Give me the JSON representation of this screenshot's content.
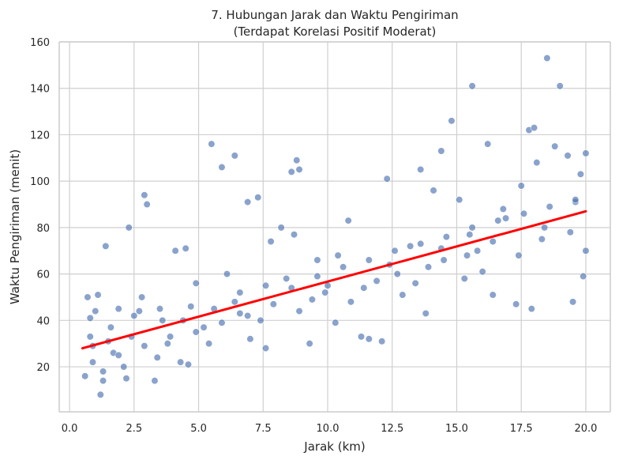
{
  "chart_data": {
    "type": "scatter",
    "title": "7. Hubungan Jarak dan Waktu Pengiriman",
    "subtitle": "(Terdapat Korelasi Positif Moderat)",
    "xlabel": "Jarak (km)",
    "ylabel": "Waktu Pengiriman (menit)",
    "xlim": [
      -0.4,
      20.95
    ],
    "ylim": [
      0.6,
      160
    ],
    "xticks": [
      0.0,
      2.5,
      5.0,
      7.5,
      10.0,
      12.5,
      15.0,
      17.5,
      20.0
    ],
    "xtick_labels": [
      "0.0",
      "2.5",
      "5.0",
      "7.5",
      "10.0",
      "12.5",
      "15.0",
      "17.5",
      "20.0"
    ],
    "yticks": [
      20,
      40,
      60,
      80,
      100,
      120,
      140,
      160
    ],
    "ytick_labels": [
      "20",
      "40",
      "60",
      "80",
      "100",
      "120",
      "140",
      "160"
    ],
    "grid": true,
    "legend": "none",
    "colors": {
      "points": "#4c72b0",
      "regression": "#ff0000",
      "grid": "#cfcfcf",
      "spine": "#cccccc"
    },
    "point_style": {
      "opacity": 0.65,
      "edge": "#ffffff"
    },
    "regression": {
      "x": [
        0.5,
        20.0
      ],
      "y": [
        28.0,
        87.0
      ]
    },
    "series": [
      {
        "values": [
          [
            0.6,
            16
          ],
          [
            0.7,
            50
          ],
          [
            0.8,
            41
          ],
          [
            0.9,
            29
          ],
          [
            1.0,
            44
          ],
          [
            1.1,
            51
          ],
          [
            1.2,
            8
          ],
          [
            1.3,
            14
          ],
          [
            1.4,
            72
          ],
          [
            1.5,
            31
          ],
          [
            1.7,
            26
          ],
          [
            1.9,
            45
          ],
          [
            2.1,
            20
          ],
          [
            2.2,
            15
          ],
          [
            2.3,
            80
          ],
          [
            2.5,
            42
          ],
          [
            2.8,
            50
          ],
          [
            2.9,
            94
          ],
          [
            3.0,
            90
          ],
          [
            3.3,
            14
          ],
          [
            3.5,
            45
          ],
          [
            3.8,
            30
          ],
          [
            4.1,
            70
          ],
          [
            4.3,
            22
          ],
          [
            4.5,
            71
          ],
          [
            4.6,
            21
          ],
          [
            4.9,
            56
          ],
          [
            5.2,
            37
          ],
          [
            5.5,
            116
          ],
          [
            5.9,
            106
          ],
          [
            6.1,
            60
          ],
          [
            6.4,
            111
          ],
          [
            6.6,
            43
          ],
          [
            6.9,
            91
          ],
          [
            7.0,
            32
          ],
          [
            7.3,
            93
          ],
          [
            7.6,
            28
          ],
          [
            7.8,
            74
          ],
          [
            8.2,
            80
          ],
          [
            8.6,
            104
          ],
          [
            8.8,
            109
          ],
          [
            8.9,
            105
          ],
          [
            8.7,
            77
          ],
          [
            9.3,
            30
          ],
          [
            9.6,
            66
          ],
          [
            10.0,
            55
          ],
          [
            10.3,
            39
          ],
          [
            10.8,
            83
          ],
          [
            11.3,
            33
          ],
          [
            11.6,
            32
          ],
          [
            12.1,
            31
          ],
          [
            12.3,
            101
          ],
          [
            12.7,
            60
          ],
          [
            13.2,
            72
          ],
          [
            13.6,
            105
          ],
          [
            13.8,
            43
          ],
          [
            14.1,
            96
          ],
          [
            14.4,
            113
          ],
          [
            14.8,
            126
          ],
          [
            14.5,
            66
          ],
          [
            15.1,
            92
          ],
          [
            15.3,
            58
          ],
          [
            15.6,
            141
          ],
          [
            15.8,
            70
          ],
          [
            16.2,
            116
          ],
          [
            16.0,
            61
          ],
          [
            16.4,
            51
          ],
          [
            16.8,
            88
          ],
          [
            17.3,
            47
          ],
          [
            17.5,
            98
          ],
          [
            17.8,
            122
          ],
          [
            18.0,
            123
          ],
          [
            18.1,
            108
          ],
          [
            17.9,
            45
          ],
          [
            18.5,
            153
          ],
          [
            18.8,
            115
          ],
          [
            19.0,
            141
          ],
          [
            19.3,
            111
          ],
          [
            19.5,
            48
          ],
          [
            19.8,
            103
          ],
          [
            20.0,
            112
          ],
          [
            19.9,
            59
          ],
          [
            19.6,
            91
          ],
          [
            18.3,
            75
          ],
          [
            16.9,
            84
          ],
          [
            15.5,
            77
          ],
          [
            13.9,
            63
          ],
          [
            12.9,
            51
          ],
          [
            11.9,
            57
          ],
          [
            10.9,
            48
          ],
          [
            9.9,
            52
          ],
          [
            8.9,
            44
          ],
          [
            7.9,
            47
          ],
          [
            6.9,
            42
          ],
          [
            5.9,
            39
          ],
          [
            4.9,
            35
          ],
          [
            3.9,
            33
          ],
          [
            2.9,
            29
          ],
          [
            1.9,
            25
          ],
          [
            0.9,
            22
          ],
          [
            1.6,
            37
          ],
          [
            2.7,
            44
          ],
          [
            3.6,
            40
          ],
          [
            4.7,
            46
          ],
          [
            5.6,
            45
          ],
          [
            6.6,
            52
          ],
          [
            7.6,
            55
          ],
          [
            8.6,
            54
          ],
          [
            9.6,
            59
          ],
          [
            10.6,
            63
          ],
          [
            11.6,
            66
          ],
          [
            12.6,
            70
          ],
          [
            13.6,
            73
          ],
          [
            14.6,
            76
          ],
          [
            15.6,
            80
          ],
          [
            16.6,
            83
          ],
          [
            17.6,
            86
          ],
          [
            18.6,
            89
          ],
          [
            19.6,
            92
          ],
          [
            0.8,
            33
          ],
          [
            1.3,
            18
          ],
          [
            2.4,
            33
          ],
          [
            3.4,
            24
          ],
          [
            4.4,
            40
          ],
          [
            5.4,
            30
          ],
          [
            6.4,
            48
          ],
          [
            7.4,
            40
          ],
          [
            8.4,
            58
          ],
          [
            9.4,
            49
          ],
          [
            10.4,
            68
          ],
          [
            11.4,
            54
          ],
          [
            12.4,
            64
          ],
          [
            13.4,
            56
          ],
          [
            14.4,
            71
          ],
          [
            15.4,
            68
          ],
          [
            16.4,
            74
          ],
          [
            17.4,
            68
          ],
          [
            18.4,
            80
          ],
          [
            19.4,
            78
          ],
          [
            20.0,
            70
          ]
        ]
      }
    ]
  }
}
